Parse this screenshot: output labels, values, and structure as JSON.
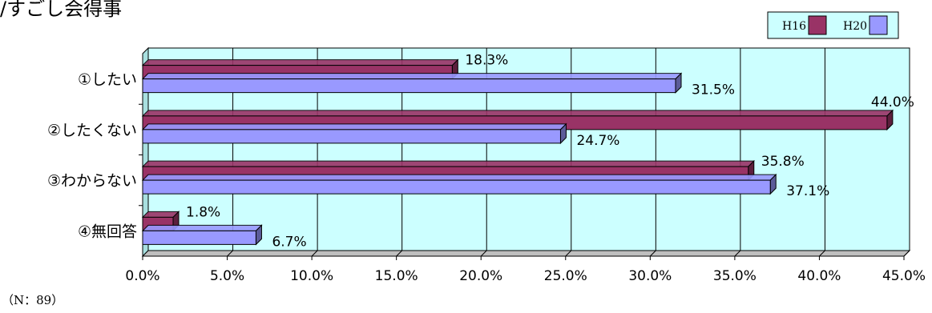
{
  "page": {
    "title_fragment": "/すごし会得事",
    "note": "（N：89）"
  },
  "chart_data": {
    "type": "bar",
    "orientation": "horizontal",
    "categories": [
      "①したい",
      "②したくない",
      "③わからない",
      "④無回答"
    ],
    "series": [
      {
        "name": "H16",
        "values": [
          18.3,
          44.0,
          35.8,
          1.8
        ],
        "color": "#993366"
      },
      {
        "name": "H20",
        "values": [
          31.5,
          24.7,
          37.1,
          6.7
        ],
        "color": "#9999ff"
      }
    ],
    "value_labels": [
      [
        "18.3%",
        "44.0%",
        "35.8%",
        "1.8%"
      ],
      [
        "31.5%",
        "24.7%",
        "37.1%",
        "6.7%"
      ]
    ],
    "xlim": [
      0,
      45
    ],
    "x_ticks": [
      "0.0%",
      "5.0%",
      "10.0%",
      "15.0%",
      "20.0%",
      "25.0%",
      "30.0%",
      "35.0%",
      "40.0%",
      "45.0%"
    ],
    "grid": true,
    "legend_position": "top-right",
    "plot_background": "#ccffff",
    "legend_background": "#ccffff"
  }
}
